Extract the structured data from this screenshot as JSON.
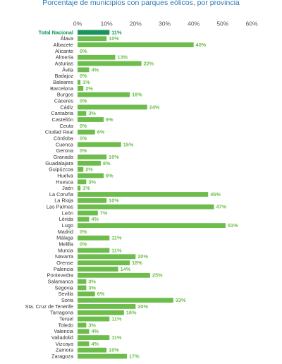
{
  "chart_data": {
    "type": "barh",
    "title": "Porcentaje de municipios con parques eólicos, por provincia",
    "categories": [
      "Total Nacional",
      "Álava",
      "Albacete",
      "Alicante",
      "Almería",
      "Asturias",
      "Ávila",
      "Badajoz",
      "Baleares",
      "Barcelona",
      "Burgos",
      "Cáceres",
      "Cádiz",
      "Cantabria",
      "Castellón",
      "Ceuta",
      "Ciudad Real",
      "Córdoba",
      "Cuenca",
      "Gerona",
      "Granada",
      "Guadalajara",
      "Guipúzcoa",
      "Huelva",
      "Huesca",
      "Jaén",
      "La Coruña",
      "La Rioja",
      "Las Palmas",
      "León",
      "Lérida",
      "Lugo",
      "Madrid",
      "Málaga",
      "Melilla",
      "Murcia",
      "Navarra",
      "Orense",
      "Palencia",
      "Pontevedra",
      "Salamanca",
      "Segovia",
      "Sevilla",
      "Soria",
      "Sta. Cruz de Tenerife",
      "Tarragona",
      "Teruel",
      "Toledo",
      "Valencia",
      "Valladolid",
      "Vizcaya",
      "Zamora",
      "Zaragoza"
    ],
    "values": [
      11,
      10,
      40,
      0,
      13,
      22,
      4,
      0,
      1,
      2,
      18,
      0,
      24,
      3,
      9,
      0,
      6,
      0,
      15,
      0,
      10,
      8,
      2,
      9,
      3,
      1,
      45,
      10,
      47,
      7,
      4,
      51,
      0,
      11,
      0,
      11,
      20,
      18,
      14,
      25,
      3,
      3,
      6,
      33,
      20,
      16,
      11,
      3,
      4,
      11,
      4,
      10,
      17
    ],
    "value_labels": [
      "11%",
      "10%",
      "40%",
      "0%",
      "13%",
      "22%",
      "4%",
      "0%",
      "1%",
      "2%",
      "18%",
      "0%",
      "24%",
      "3%",
      "9%",
      "0%",
      "6%",
      "0%",
      "15%",
      "0%",
      "10%",
      "8%",
      "2%",
      "9%",
      "3%",
      "1%",
      "45%",
      "10%",
      "47%",
      "7%",
      "4%",
      "51%",
      "0%",
      "11%",
      "0%",
      "11%",
      "20%",
      "18%",
      "14%",
      "25%",
      "3%",
      "3%",
      "6%",
      "33%",
      "20%",
      "16%",
      "11%",
      "3%",
      "4%",
      "11%",
      "4%",
      "10%",
      "17%"
    ],
    "colors": [
      "#17955a",
      "#6dbd4c",
      "#6dbd4c",
      "#6dbd4c",
      "#6dbd4c",
      "#6dbd4c",
      "#6dbd4c",
      "#6dbd4c",
      "#6dbd4c",
      "#6dbd4c",
      "#6dbd4c",
      "#6dbd4c",
      "#6dbd4c",
      "#6dbd4c",
      "#6dbd4c",
      "#6dbd4c",
      "#6dbd4c",
      "#6dbd4c",
      "#6dbd4c",
      "#6dbd4c",
      "#6dbd4c",
      "#6dbd4c",
      "#6dbd4c",
      "#6dbd4c",
      "#6dbd4c",
      "#6dbd4c",
      "#6dbd4c",
      "#6dbd4c",
      "#6dbd4c",
      "#6dbd4c",
      "#6dbd4c",
      "#6dbd4c",
      "#6dbd4c",
      "#6dbd4c",
      "#6dbd4c",
      "#6dbd4c",
      "#6dbd4c",
      "#6dbd4c",
      "#6dbd4c",
      "#6dbd4c",
      "#6dbd4c",
      "#6dbd4c",
      "#6dbd4c",
      "#6dbd4c",
      "#6dbd4c",
      "#6dbd4c",
      "#6dbd4c",
      "#6dbd4c",
      "#6dbd4c",
      "#6dbd4c",
      "#6dbd4c",
      "#6dbd4c",
      "#6dbd4c"
    ],
    "xlim": [
      0,
      60
    ],
    "xticks": [
      {
        "value": 0,
        "label": "0%"
      },
      {
        "value": 10,
        "label": "10%"
      },
      {
        "value": 20,
        "label": "20%"
      },
      {
        "value": 30,
        "label": "30%"
      },
      {
        "value": 40,
        "label": "40%"
      },
      {
        "value": 50,
        "label": "50%"
      },
      {
        "value": 60,
        "label": "60%"
      }
    ]
  }
}
